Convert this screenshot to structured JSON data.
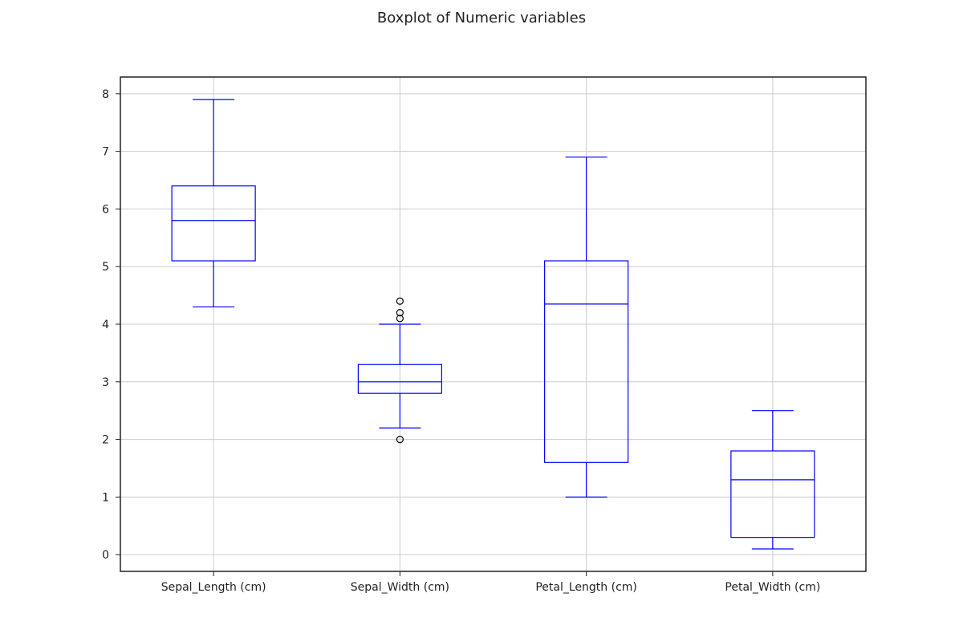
{
  "chart_data": {
    "type": "box",
    "title": "Boxplot of Numeric variables",
    "xlabel": "",
    "ylabel": "",
    "ylim": [
      -0.29,
      8.29
    ],
    "yticks": [
      0,
      1,
      2,
      3,
      4,
      5,
      6,
      7,
      8
    ],
    "grid": true,
    "legend": "none",
    "colors": {
      "box": "#0000ff",
      "outlier_edge": "#000000",
      "grid": "#cccccc",
      "axes": "#222222"
    },
    "categories": [
      "Sepal_Length (cm)",
      "Sepal_Width (cm)",
      "Petal_Length (cm)",
      "Petal_Width (cm)"
    ],
    "boxes": [
      {
        "whisker_low": 4.3,
        "q1": 5.1,
        "median": 5.8,
        "q3": 6.4,
        "whisker_high": 7.9,
        "outliers": []
      },
      {
        "whisker_low": 2.2,
        "q1": 2.8,
        "median": 3.0,
        "q3": 3.3,
        "whisker_high": 4.0,
        "outliers": [
          4.4,
          4.2,
          4.1,
          2.0
        ]
      },
      {
        "whisker_low": 1.0,
        "q1": 1.6,
        "median": 4.35,
        "q3": 5.1,
        "whisker_high": 6.9,
        "outliers": []
      },
      {
        "whisker_low": 0.1,
        "q1": 0.3,
        "median": 1.3,
        "q3": 1.8,
        "whisker_high": 2.5,
        "outliers": []
      }
    ]
  }
}
